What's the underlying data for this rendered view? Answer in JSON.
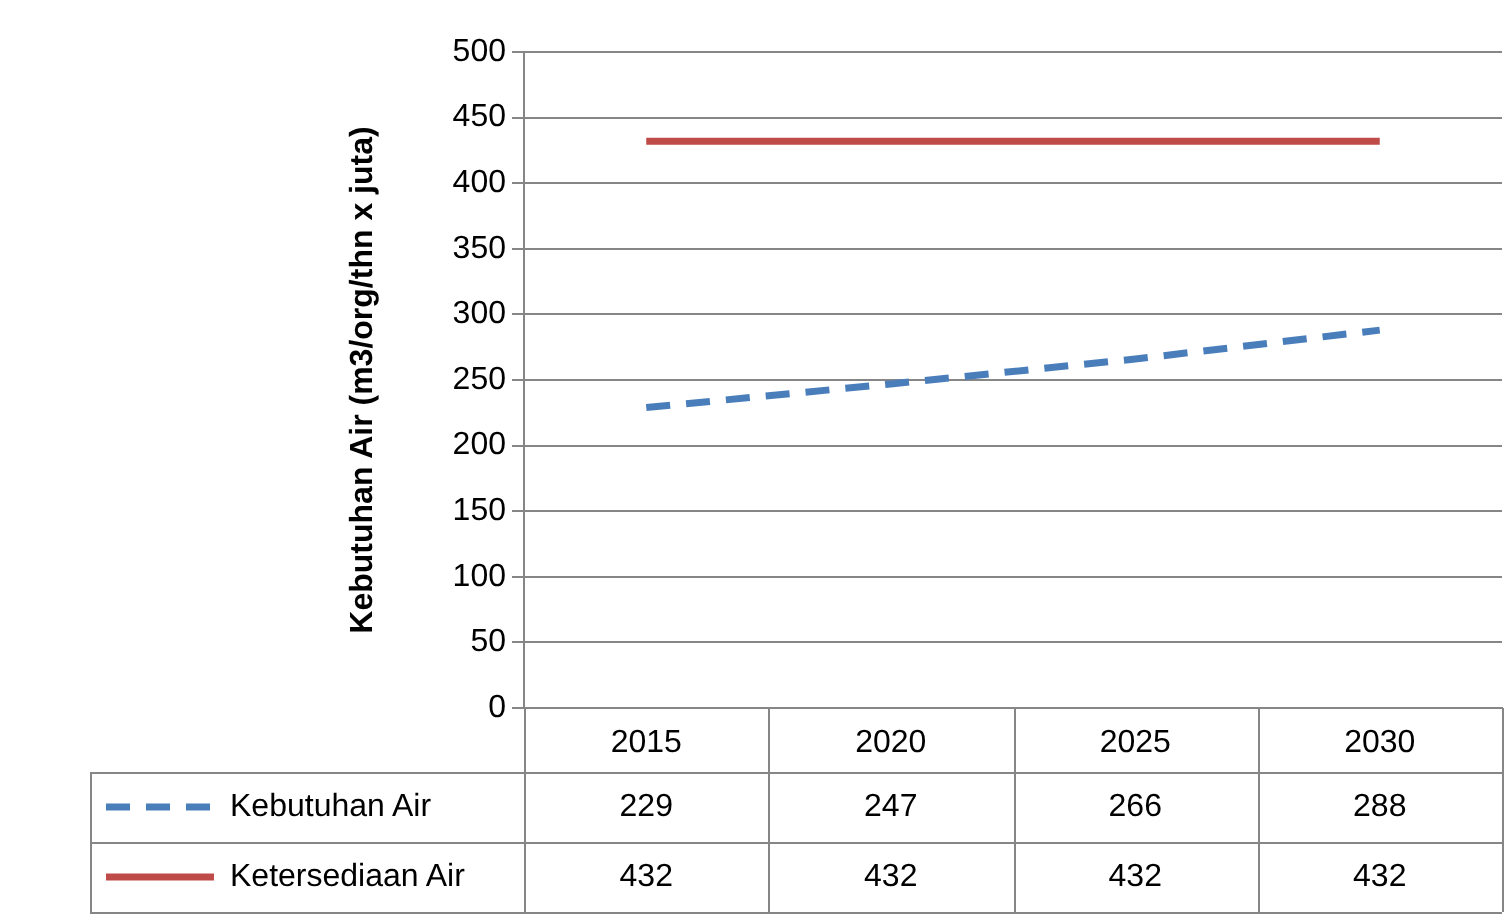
{
  "chart_data": {
    "type": "line",
    "ylabel": "Kebutuhan Air (m3/org/thn x juta)",
    "categories": [
      "2015",
      "2020",
      "2025",
      "2030"
    ],
    "series": [
      {
        "name": "Kebutuhan Air",
        "color": "#4a7ebb",
        "line_style": "dashed",
        "values": [
          229,
          247,
          266,
          288
        ]
      },
      {
        "name": "Ketersediaan Air",
        "color": "#be4b48",
        "line_style": "solid",
        "values": [
          432,
          432,
          432,
          432
        ]
      }
    ],
    "ylim": [
      0,
      500
    ],
    "yticks": [
      0,
      50,
      100,
      150,
      200,
      250,
      300,
      350,
      400,
      450,
      500
    ],
    "grid": "y",
    "legend": "bottom",
    "data_labels": true,
    "marker": "none"
  }
}
